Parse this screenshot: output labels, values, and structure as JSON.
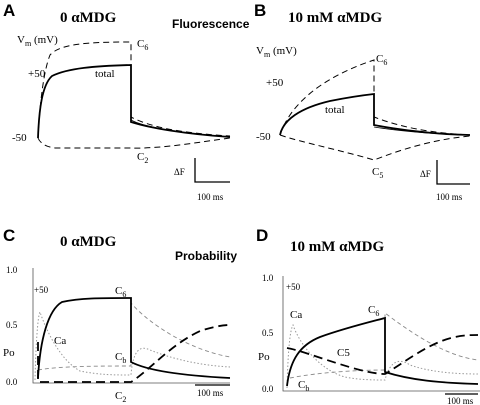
{
  "panels": {
    "A": {
      "letter": "A",
      "condition": "0 αMDG",
      "section": "Fluorescence"
    },
    "B": {
      "letter": "B",
      "condition": "10 mM αMDG"
    },
    "C": {
      "letter": "C",
      "condition": "0 αMDG",
      "section": "Probability"
    },
    "D": {
      "letter": "D",
      "condition": "10 mM αMDG"
    }
  },
  "labels": {
    "vm_v": "V",
    "vm_sub": "m",
    "vm_unit": " (mV)",
    "plus50": "+50",
    "minus50": "-50",
    "total": "total",
    "c_main": "C",
    "c6_sub": "6",
    "c2_sub": "2",
    "c5_sub": "5",
    "cb_sub": "b",
    "ca": "Ca",
    "c5_plain": "C5",
    "delta_f": "ΔF",
    "scale": "100 ms",
    "po": "Po"
  },
  "colors": {
    "trace": "#000000",
    "dotted": "#9a9a9a",
    "axis": "#555555"
  },
  "chart_data": [
    {
      "panel": "A",
      "type": "line",
      "title": "0 αMDG",
      "section": "Fluorescence",
      "x_unit": "ms",
      "pulse": [
        0,
        200
      ],
      "vm_levels_mV": [
        -50,
        50
      ],
      "scale_bar": "100 ms",
      "series": [
        {
          "name": "total",
          "style": "solid"
        },
        {
          "name": "C6",
          "style": "dashed"
        },
        {
          "name": "C2",
          "style": "dashed"
        }
      ]
    },
    {
      "panel": "B",
      "type": "line",
      "title": "10 mM αMDG",
      "x_unit": "ms",
      "pulse": [
        0,
        200
      ],
      "vm_levels_mV": [
        -50,
        50
      ],
      "scale_bar": "100 ms",
      "series": [
        {
          "name": "total",
          "style": "solid"
        },
        {
          "name": "C6",
          "style": "dashed"
        },
        {
          "name": "C5",
          "style": "dashed"
        }
      ]
    },
    {
      "panel": "C",
      "type": "line",
      "title": "0 αMDG",
      "section": "Probability",
      "ylabel": "Po",
      "y_ticks": [
        "0.0",
        "0.5",
        "1.0"
      ],
      "ylim": [
        0,
        1
      ],
      "scale_bar": "100 ms",
      "series": [
        {
          "name": "C6",
          "style": "solid"
        },
        {
          "name": "C2",
          "style": "long-dashed"
        },
        {
          "name": "Ca",
          "style": "dotted"
        },
        {
          "name": "Cb",
          "style": "dashed"
        }
      ]
    },
    {
      "panel": "D",
      "type": "line",
      "title": "10 mM αMDG",
      "ylabel": "Po",
      "y_ticks": [
        "0.0",
        "0.5",
        "1.0"
      ],
      "ylim": [
        0,
        1
      ],
      "scale_bar": "100 ms",
      "series": [
        {
          "name": "C6",
          "style": "solid"
        },
        {
          "name": "C5",
          "style": "long-dashed"
        },
        {
          "name": "Ca",
          "style": "dotted"
        },
        {
          "name": "Cb",
          "style": "dashed"
        }
      ]
    }
  ]
}
